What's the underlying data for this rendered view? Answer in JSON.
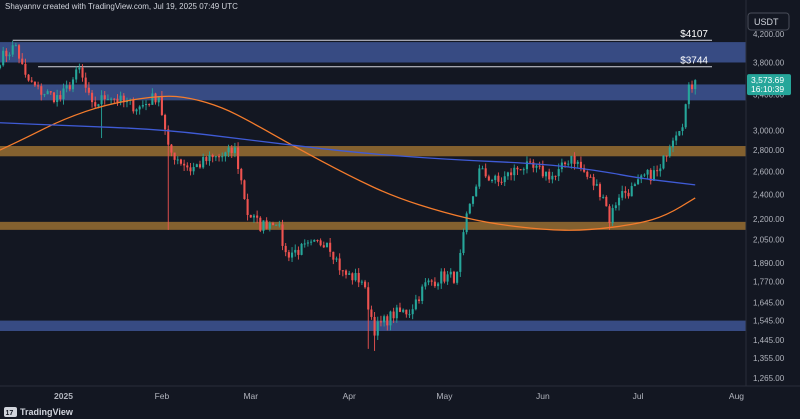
{
  "header": {
    "credit": "Shayannv created with TradingView.com, Jul 19, 2025 07:49 UTC"
  },
  "footer": {
    "brand": "TradingView",
    "logo_mark": "17"
  },
  "colors": {
    "background": "#131722",
    "up": "#26a69a",
    "down": "#ef5350",
    "ma_fast": "#f57c2c",
    "ma_slow": "#3f5bd6",
    "zone_blue": "rgba(78,108,190,0.62)",
    "zone_orange": "rgba(176,126,52,0.72)",
    "price_tag": "#26a69a",
    "text": "#b2b5be",
    "level_line": "#d1d4dc"
  },
  "chart_data": {
    "type": "candlestick",
    "title": "",
    "quote_currency": "USDT",
    "scale": "log",
    "ylim": [
      1230,
      4500
    ],
    "y_ticks": [
      "4,200.00",
      "3,800.00",
      "3,400.00",
      "3,000.00",
      "2,800.00",
      "2,600.00",
      "2,400.00",
      "2,200.00",
      "2,050.00",
      "1,890.00",
      "1,770.00",
      "1,645.00",
      "1,545.00",
      "1,445.00",
      "1,355.00",
      "1,265.00"
    ],
    "y_tick_values": [
      4200,
      3800,
      3400,
      3000,
      2800,
      2600,
      2400,
      2200,
      2050,
      1890,
      1770,
      1645,
      1545,
      1445,
      1355,
      1265
    ],
    "x_range": [
      "2024-12-12",
      "2025-08-04"
    ],
    "x_ticks": [
      {
        "label": "2025",
        "date": "2025-01-01"
      },
      {
        "label": "Feb",
        "date": "2025-02-01"
      },
      {
        "label": "Mar",
        "date": "2025-03-01"
      },
      {
        "label": "Apr",
        "date": "2025-04-01"
      },
      {
        "label": "May",
        "date": "2025-05-01"
      },
      {
        "label": "Jun",
        "date": "2025-06-01"
      },
      {
        "label": "Jul",
        "date": "2025-07-01"
      },
      {
        "label": "Aug",
        "date": "2025-08-01"
      }
    ],
    "price_tag": {
      "value": "3,573.69",
      "countdown": "16:10:39"
    },
    "levels": [
      {
        "label": "$4107",
        "value": 4107,
        "start": "2024-12-16"
      },
      {
        "label": "$3744",
        "value": 3744,
        "start": "2024-12-24"
      }
    ],
    "zones": [
      {
        "kind": "supply",
        "color": "blue",
        "low": 3800,
        "high": 4080
      },
      {
        "kind": "supply",
        "color": "blue",
        "low": 3330,
        "high": 3520
      },
      {
        "kind": "support",
        "color": "orange",
        "low": 2740,
        "high": 2840
      },
      {
        "kind": "support",
        "color": "orange",
        "low": 2120,
        "high": 2180
      },
      {
        "kind": "support",
        "color": "blue",
        "low": 1490,
        "high": 1545
      }
    ],
    "ma_series": [
      {
        "color": "orange",
        "points": [
          [
            "2024-12-12",
            2800
          ],
          [
            "2024-12-20",
            2920
          ],
          [
            "2025-01-01",
            3120
          ],
          [
            "2025-01-15",
            3290
          ],
          [
            "2025-02-01",
            3390
          ],
          [
            "2025-02-10",
            3360
          ],
          [
            "2025-02-20",
            3250
          ],
          [
            "2025-03-01",
            3090
          ],
          [
            "2025-03-15",
            2830
          ],
          [
            "2025-04-01",
            2560
          ],
          [
            "2025-04-15",
            2380
          ],
          [
            "2025-05-01",
            2250
          ],
          [
            "2025-05-15",
            2170
          ],
          [
            "2025-06-01",
            2120
          ],
          [
            "2025-06-15",
            2115
          ],
          [
            "2025-07-01",
            2165
          ],
          [
            "2025-07-10",
            2230
          ],
          [
            "2025-07-19",
            2370
          ]
        ]
      },
      {
        "color": "blue",
        "points": [
          [
            "2024-12-12",
            3080
          ],
          [
            "2025-01-01",
            3050
          ],
          [
            "2025-02-01",
            3010
          ],
          [
            "2025-03-01",
            2900
          ],
          [
            "2025-04-01",
            2780
          ],
          [
            "2025-05-01",
            2710
          ],
          [
            "2025-06-01",
            2670
          ],
          [
            "2025-06-20",
            2600
          ],
          [
            "2025-07-01",
            2540
          ],
          [
            "2025-07-19",
            2480
          ]
        ]
      }
    ],
    "anchors": [
      [
        "2024-12-12",
        3850
      ],
      [
        "2024-12-17",
        4030
      ],
      [
        "2024-12-20",
        3600
      ],
      [
        "2024-12-24",
        3450
      ],
      [
        "2024-12-31",
        3350
      ],
      [
        "2025-01-06",
        3700
      ],
      [
        "2025-01-10",
        3250
      ],
      [
        "2025-01-15",
        3400
      ],
      [
        "2025-01-20",
        3300
      ],
      [
        "2025-01-25",
        3250
      ],
      [
        "2025-01-31",
        3400
      ],
      [
        "2025-02-03",
        2800
      ],
      [
        "2025-02-10",
        2620
      ],
      [
        "2025-02-15",
        2700
      ],
      [
        "2025-02-20",
        2740
      ],
      [
        "2025-02-24",
        2800
      ],
      [
        "2025-02-28",
        2250
      ],
      [
        "2025-03-04",
        2150
      ],
      [
        "2025-03-09",
        2200
      ],
      [
        "2025-03-12",
        1950
      ],
      [
        "2025-03-20",
        2000
      ],
      [
        "2025-03-25",
        2050
      ],
      [
        "2025-03-30",
        1820
      ],
      [
        "2025-04-05",
        1780
      ],
      [
        "2025-04-09",
        1500
      ],
      [
        "2025-04-15",
        1580
      ],
      [
        "2025-04-20",
        1600
      ],
      [
        "2025-04-25",
        1750
      ],
      [
        "2025-04-30",
        1800
      ],
      [
        "2025-05-05",
        1800
      ],
      [
        "2025-05-08",
        2200
      ],
      [
        "2025-05-12",
        2600
      ],
      [
        "2025-05-18",
        2500
      ],
      [
        "2025-05-25",
        2650
      ],
      [
        "2025-05-31",
        2600
      ],
      [
        "2025-06-05",
        2550
      ],
      [
        "2025-06-10",
        2750
      ],
      [
        "2025-06-15",
        2550
      ],
      [
        "2025-06-20",
        2400
      ],
      [
        "2025-06-22",
        2200
      ],
      [
        "2025-06-25",
        2400
      ],
      [
        "2025-06-30",
        2450
      ],
      [
        "2025-07-03",
        2550
      ],
      [
        "2025-07-08",
        2600
      ],
      [
        "2025-07-10",
        2800
      ],
      [
        "2025-07-12",
        2950
      ],
      [
        "2025-07-15",
        3100
      ],
      [
        "2025-07-17",
        3450
      ],
      [
        "2025-07-19",
        3574
      ]
    ],
    "spikes": [
      {
        "date": "2025-02-03",
        "low": 2120
      },
      {
        "date": "2025-04-07",
        "low": 1400
      },
      {
        "date": "2025-04-09",
        "low": 1390
      },
      {
        "date": "2025-06-22",
        "low": 2120
      },
      {
        "date": "2025-01-13",
        "low": 2920
      }
    ]
  }
}
